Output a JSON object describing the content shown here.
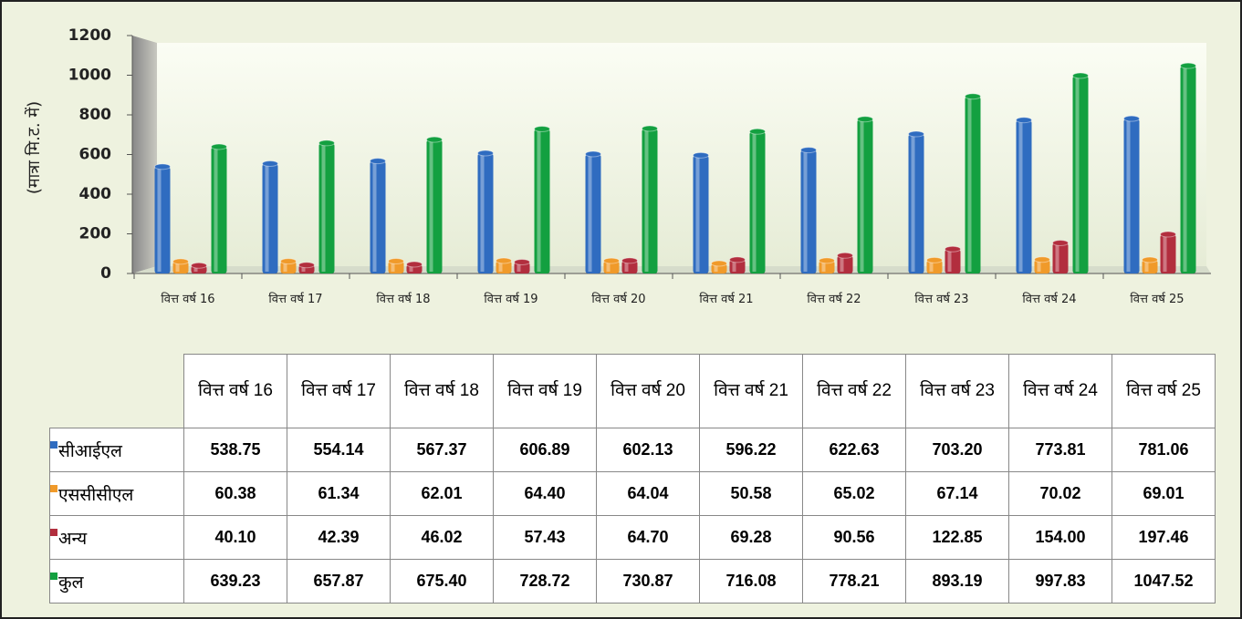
{
  "chart_data": {
    "type": "bar",
    "y_label": "(मात्रा मि.ट. में)",
    "categories": [
      "वित्त वर्ष 16",
      "वित्त वर्ष 17",
      "वित्त वर्ष 18",
      "वित्त वर्ष 19",
      "वित्त वर्ष 20",
      "वित्त वर्ष 21",
      "वित्त वर्ष 22",
      "वित्त वर्ष 23",
      "वित्त वर्ष 24",
      "वित्त वर्ष 25"
    ],
    "series": [
      {
        "name": "सीआईएल",
        "color": "#2f6cc0",
        "values": [
          538.75,
          554.14,
          567.37,
          606.89,
          602.13,
          596.22,
          622.63,
          703.2,
          773.81,
          781.06
        ],
        "value_labels": [
          "538.75",
          "554.14",
          "567.37",
          "606.89",
          "602.13",
          "596.22",
          "622.63",
          "703.20",
          "773.81",
          "781.06"
        ]
      },
      {
        "name": "एससीसीएल",
        "color": "#f09a2a",
        "values": [
          60.38,
          61.34,
          62.01,
          64.4,
          64.04,
          50.58,
          65.02,
          67.14,
          70.02,
          69.01
        ],
        "value_labels": [
          "60.38",
          "61.34",
          "62.01",
          "64.40",
          "64.04",
          "50.58",
          "65.02",
          "67.14",
          "70.02",
          "69.01"
        ]
      },
      {
        "name": "अन्य",
        "color": "#b22e3e",
        "values": [
          40.1,
          42.39,
          46.02,
          57.43,
          64.7,
          69.28,
          90.56,
          122.85,
          154,
          197.46
        ],
        "value_labels": [
          "40.10",
          "42.39",
          "46.02",
          "57.43",
          "64.70",
          "69.28",
          "90.56",
          "122.85",
          "154.00",
          "197.46"
        ]
      },
      {
        "name": "कुल",
        "color": "#13a040",
        "values": [
          639.23,
          657.87,
          675.4,
          728.72,
          730.87,
          716.08,
          778.21,
          893.19,
          997.83,
          1047.52
        ],
        "value_labels": [
          "639.23",
          "657.87",
          "675.40",
          "728.72",
          "730.87",
          "716.08",
          "778.21",
          "893.19",
          "997.83",
          "1047.52"
        ]
      }
    ],
    "ylim": [
      0,
      1200
    ],
    "yticks": [
      0,
      200,
      400,
      600,
      800,
      1000,
      1200
    ]
  }
}
